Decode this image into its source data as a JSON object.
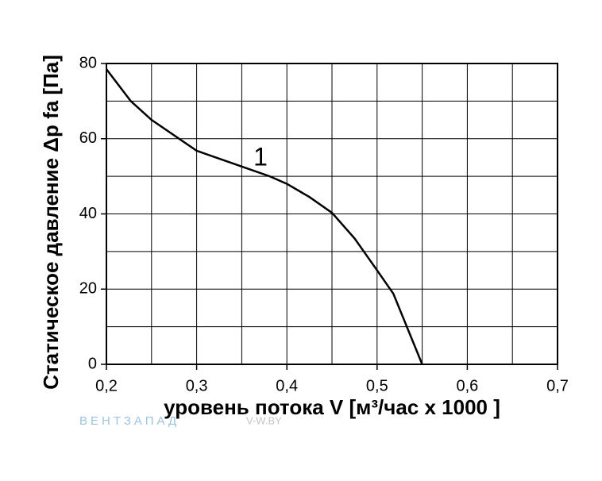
{
  "chart_data": {
    "type": "line",
    "x": [
      0.2,
      0.227,
      0.25,
      0.3,
      0.35,
      0.381,
      0.4,
      0.425,
      0.45,
      0.475,
      0.5,
      0.518,
      0.55
    ],
    "series": [
      {
        "name": "1",
        "color": "#000000",
        "values": [
          78.5,
          70,
          65,
          56.8,
          52.6,
          50,
          48,
          44.5,
          40.3,
          33.5,
          25,
          18.8,
          0
        ]
      }
    ],
    "xlabel": "уровень потока  V [м³/час x 1000 ]",
    "ylabel": "Статическое давление  Δp fa [Па]",
    "xlim": [
      0.2,
      0.7
    ],
    "ylim": [
      0,
      80
    ],
    "xticks": [
      {
        "value": 0.2,
        "label": "0,2"
      },
      {
        "value": 0.3,
        "label": "0,3"
      },
      {
        "value": 0.4,
        "label": "0,4"
      },
      {
        "value": 0.5,
        "label": "0,5"
      },
      {
        "value": 0.6,
        "label": "0,6"
      },
      {
        "value": 0.7,
        "label": "0,7"
      }
    ],
    "yticks": [
      0,
      20,
      40,
      60,
      80
    ],
    "xgrid": [
      0.25,
      0.3,
      0.35,
      0.4,
      0.45,
      0.5,
      0.55,
      0.6,
      0.65
    ],
    "ygrid": [
      10,
      20,
      30,
      40,
      50,
      60,
      70
    ],
    "grid": true,
    "watermark": [
      "ВЕНТЗАПАД",
      "V-W.BY"
    ]
  }
}
